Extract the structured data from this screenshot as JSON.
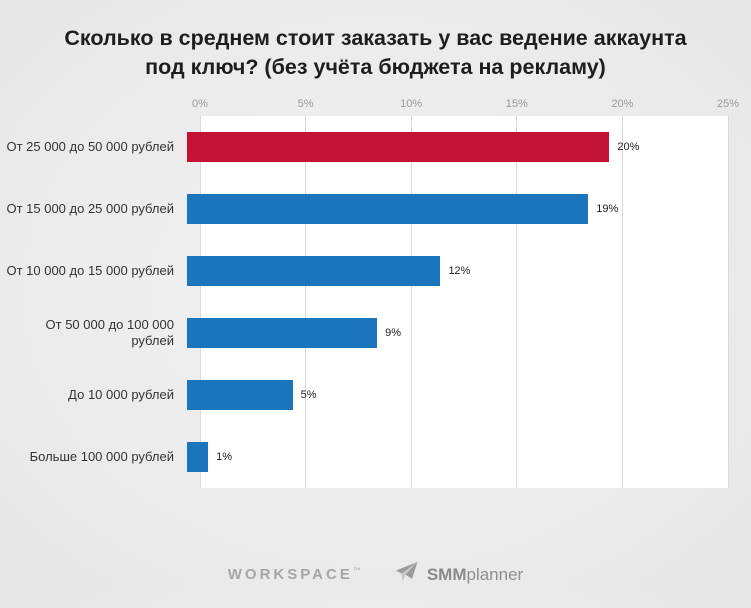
{
  "title": "Сколько в среднем стоит заказать у вас ведение аккаунта под ключ? (без учёта бюджета на рекламу)",
  "chart_data": {
    "type": "bar",
    "orientation": "horizontal",
    "title": "Сколько в среднем стоит заказать у вас ведение аккаунта под ключ? (без учёта бюджета на рекламу)",
    "categories": [
      "От 25 000 до 50 000 рублей",
      "От 15 000 до 25 000 рублей",
      "От 10 000 до 15 000 рублей",
      "От 50 000 до 100 000 рублей",
      "До 10 000 рублей",
      "Больше 100 000 рублей"
    ],
    "values": [
      20,
      19,
      12,
      9,
      5,
      1
    ],
    "value_labels": [
      "20%",
      "19%",
      "12%",
      "9%",
      "5%",
      "1%"
    ],
    "bar_colors": [
      "#c41334",
      "#1b75bc",
      "#1b75bc",
      "#1b75bc",
      "#1b75bc",
      "#1b75bc"
    ],
    "highlight_color": "#c41334",
    "default_bar_color": "#1b75bc",
    "xlim": [
      0,
      25
    ],
    "xticks": [
      "0%",
      "5%",
      "10%",
      "15%",
      "20%",
      "25%"
    ],
    "xtick_values": [
      0,
      5,
      10,
      15,
      20,
      25
    ],
    "grid": true,
    "legend": "none",
    "axis_position": "top"
  },
  "footer": {
    "workspace_label": "WORKSPACE",
    "workspace_tm": "™",
    "smm_bold": "SMM",
    "smm_rest": "planner",
    "logo_color": "#9a9a9a"
  }
}
